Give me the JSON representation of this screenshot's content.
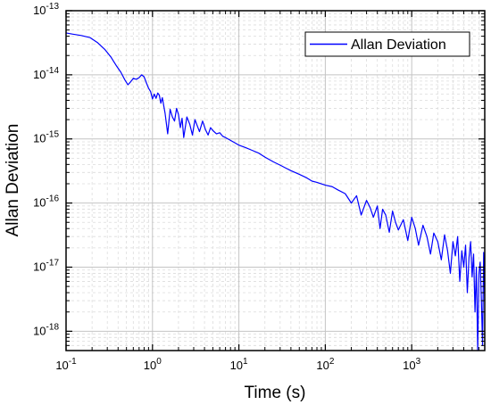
{
  "chart_data": {
    "type": "line",
    "xlabel": "Time (s)",
    "ylabel": "Allan Deviation",
    "x_scale": "log",
    "y_scale": "log",
    "xlim": [
      0.1,
      7000
    ],
    "ylim": [
      5e-19,
      1e-13
    ],
    "grid": true,
    "legend_position": "top-right",
    "x_ticks": [
      {
        "base": "10",
        "exp": "-1",
        "value": 0.1
      },
      {
        "base": "10",
        "exp": "0",
        "value": 1
      },
      {
        "base": "10",
        "exp": "1",
        "value": 10
      },
      {
        "base": "10",
        "exp": "2",
        "value": 100
      },
      {
        "base": "10",
        "exp": "3",
        "value": 1000
      }
    ],
    "y_ticks": [
      {
        "base": "10",
        "exp": "-13",
        "value": 1e-13
      },
      {
        "base": "10",
        "exp": "-14",
        "value": 1e-14
      },
      {
        "base": "10",
        "exp": "-15",
        "value": 1e-15
      },
      {
        "base": "10",
        "exp": "-16",
        "value": 1e-16
      },
      {
        "base": "10",
        "exp": "-17",
        "value": 1e-17
      },
      {
        "base": "10",
        "exp": "-18",
        "value": 1e-18
      }
    ],
    "series": [
      {
        "name": "Allan Deviation",
        "color": "#0000ff",
        "x": [
          0.1,
          0.12,
          0.15,
          0.19,
          0.23,
          0.28,
          0.33,
          0.38,
          0.43,
          0.48,
          0.52,
          0.55,
          0.6,
          0.65,
          0.7,
          0.75,
          0.8,
          0.85,
          0.9,
          0.95,
          1.0,
          1.05,
          1.1,
          1.15,
          1.2,
          1.25,
          1.3,
          1.4,
          1.5,
          1.6,
          1.7,
          1.8,
          1.9,
          2.0,
          2.1,
          2.2,
          2.3,
          2.5,
          2.7,
          2.9,
          3.1,
          3.3,
          3.5,
          3.8,
          4.1,
          4.4,
          4.7,
          5.0,
          5.5,
          6.0,
          6.5,
          7.0,
          8.0,
          9.0,
          10,
          12,
          14,
          17,
          20,
          25,
          30,
          35,
          40,
          50,
          60,
          70,
          80,
          100,
          120,
          140,
          170,
          200,
          230,
          260,
          300,
          330,
          360,
          400,
          430,
          460,
          500,
          550,
          600,
          650,
          700,
          800,
          900,
          1000,
          1100,
          1200,
          1350,
          1500,
          1650,
          1800,
          2000,
          2200,
          2400,
          2600,
          2800,
          3000,
          3200,
          3400,
          3600,
          3800,
          4000,
          4200,
          4400,
          4600,
          4800,
          5000,
          5200,
          5400,
          5600,
          5800,
          6000,
          6200,
          6400,
          6600,
          6800,
          7000
        ],
        "y": [
          4.5e-14,
          4.3e-14,
          4.1e-14,
          3.8e-14,
          3.2e-14,
          2.5e-14,
          1.9e-14,
          1.4e-14,
          1.1e-14,
          8.3e-15,
          7e-15,
          7.6e-15,
          8.8e-15,
          8.5e-15,
          9e-15,
          1e-14,
          9.3e-15,
          7.5e-15,
          6.2e-15,
          5.5e-15,
          4.2e-15,
          5e-15,
          4.3e-15,
          5.2e-15,
          4.8e-15,
          3.6e-15,
          4.4e-15,
          2.5e-15,
          1.2e-15,
          2.9e-15,
          2.2e-15,
          1.9e-15,
          3e-15,
          2.4e-15,
          1.5e-15,
          2.1e-15,
          1.05e-15,
          2.2e-15,
          1.7e-15,
          1.15e-15,
          2e-15,
          1.6e-15,
          1.3e-15,
          1.9e-15,
          1.4e-15,
          1.15e-15,
          1.5e-15,
          1.35e-15,
          1.2e-15,
          1.25e-15,
          1.1e-15,
          1.05e-15,
          9.5e-16,
          8.7e-16,
          8e-16,
          7.3e-16,
          6.7e-16,
          6e-16,
          5.2e-16,
          4.4e-16,
          3.9e-16,
          3.5e-16,
          3.2e-16,
          2.8e-16,
          2.5e-16,
          2.2e-16,
          2.1e-16,
          1.9e-16,
          1.8e-16,
          1.6e-16,
          1.4e-16,
          1e-16,
          1.3e-16,
          6.5e-17,
          1.1e-16,
          8.5e-17,
          6e-17,
          9e-17,
          4e-17,
          8e-17,
          6.5e-17,
          3.5e-17,
          7.5e-17,
          5e-17,
          3.8e-17,
          5.5e-17,
          2.6e-17,
          6e-17,
          4e-17,
          2.2e-17,
          4.5e-17,
          3e-17,
          1.6e-17,
          3.4e-17,
          2.5e-17,
          1.3e-17,
          3.2e-17,
          1.8e-17,
          8e-18,
          2.5e-17,
          1.5e-17,
          3e-17,
          6e-18,
          1.8e-17,
          1e-17,
          2.2e-17,
          4e-18,
          1.4e-17,
          2.5e-17,
          7e-18,
          1.6e-17,
          2e-18,
          1e-17,
          5e-19,
          8e-18,
          1.2e-17,
          3e-18,
          6e-19,
          1.7e-17,
          3e-18
        ]
      }
    ]
  }
}
